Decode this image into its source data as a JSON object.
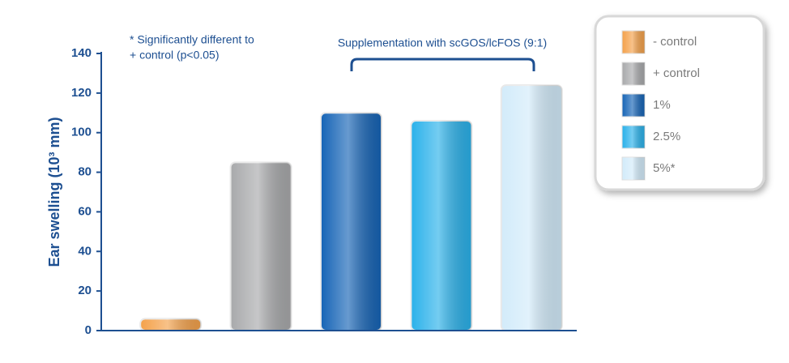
{
  "chart_data": {
    "type": "bar",
    "ylabel": "Ear swelling (10³ mm)",
    "annotation_lines": [
      "* Significantly different to",
      "+ control (p<0.05)"
    ],
    "bracket_label": "Supplementation with  scGOS/lcFOS (9:1)",
    "categories": [
      null
    ],
    "series": [
      {
        "name": "- control",
        "color": "#f4a14a",
        "values": [
          6
        ]
      },
      {
        "name": "+ control",
        "color": "#a8a9ab",
        "values": [
          85
        ]
      },
      {
        "name": "1%",
        "color": "#1664b6",
        "values": [
          110
        ]
      },
      {
        "name": "2.5%",
        "color": "#2ab1ea",
        "values": [
          106
        ]
      },
      {
        "name": "5%*",
        "color": "#d2ebfa",
        "values": [
          124
        ]
      }
    ],
    "ylim": [
      0,
      140
    ],
    "yticks": [
      0,
      20,
      40,
      60,
      80,
      100,
      120,
      140
    ],
    "grid": false,
    "legend": "top-right"
  }
}
